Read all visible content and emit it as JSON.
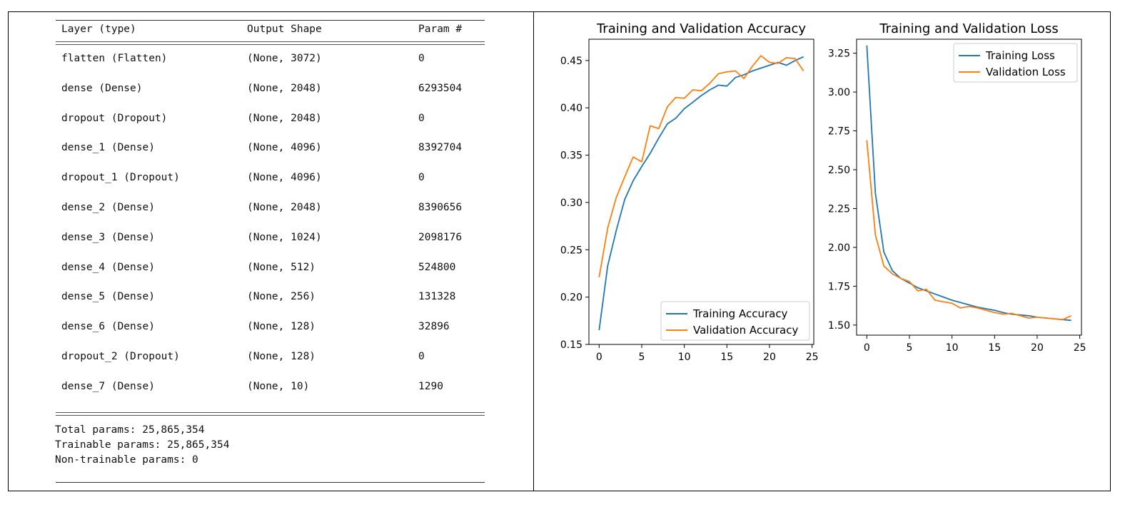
{
  "summary": {
    "headers": {
      "layer": "Layer (type)",
      "shape": "Output Shape",
      "params": "Param #"
    },
    "rows": [
      {
        "layer": "flatten (Flatten)",
        "shape": "(None, 3072)",
        "params": "0"
      },
      {
        "layer": "dense (Dense)",
        "shape": "(None, 2048)",
        "params": "6293504"
      },
      {
        "layer": "dropout (Dropout)",
        "shape": "(None, 2048)",
        "params": "0"
      },
      {
        "layer": "dense_1 (Dense)",
        "shape": "(None, 4096)",
        "params": "8392704"
      },
      {
        "layer": "dropout_1 (Dropout)",
        "shape": "(None, 4096)",
        "params": "0"
      },
      {
        "layer": "dense_2 (Dense)",
        "shape": "(None, 2048)",
        "params": "8390656"
      },
      {
        "layer": "dense_3 (Dense)",
        "shape": "(None, 1024)",
        "params": "2098176"
      },
      {
        "layer": "dense_4 (Dense)",
        "shape": "(None, 512)",
        "params": "524800"
      },
      {
        "layer": "dense_5 (Dense)",
        "shape": "(None, 256)",
        "params": "131328"
      },
      {
        "layer": "dense_6 (Dense)",
        "shape": "(None, 128)",
        "params": "32896"
      },
      {
        "layer": "dropout_2 (Dropout)",
        "shape": "(None, 128)",
        "params": "0"
      },
      {
        "layer": "dense_7 (Dense)",
        "shape": "(None, 10)",
        "params": "1290"
      }
    ],
    "total": "Total params: 25,865,354",
    "trainable": "Trainable params: 25,865,354",
    "non_trainable": "Non-trainable params: 0"
  },
  "chart_data": [
    {
      "type": "line",
      "title": "Training and Validation Accuracy",
      "xlabel": "",
      "ylabel": "",
      "xlim": [
        -1.2,
        25.2
      ],
      "ylim": [
        0.15,
        0.4725
      ],
      "xticks": [
        0,
        5,
        10,
        15,
        20,
        25
      ],
      "yticks": [
        0.15,
        0.2,
        0.25,
        0.3,
        0.35,
        0.4,
        0.45
      ],
      "ytick_labels": [
        "0.15",
        "0.20",
        "0.25",
        "0.30",
        "0.35",
        "0.40",
        "0.45"
      ],
      "legend_position": "lower-right",
      "x": [
        0,
        1,
        2,
        3,
        4,
        5,
        6,
        7,
        8,
        9,
        10,
        11,
        12,
        13,
        14,
        15,
        16,
        17,
        18,
        19,
        20,
        21,
        22,
        23,
        24
      ],
      "series": [
        {
          "name": "Training Accuracy",
          "color": "#1f77b4",
          "values": [
            0.165,
            0.233,
            0.27,
            0.303,
            0.323,
            0.338,
            0.352,
            0.368,
            0.383,
            0.389,
            0.399,
            0.406,
            0.413,
            0.419,
            0.424,
            0.423,
            0.432,
            0.435,
            0.439,
            0.442,
            0.445,
            0.448,
            0.445,
            0.45,
            0.454
          ]
        },
        {
          "name": "Validation Accuracy",
          "color": "#ff7f0e",
          "values": [
            0.221,
            0.273,
            0.305,
            0.327,
            0.348,
            0.343,
            0.381,
            0.378,
            0.401,
            0.411,
            0.41,
            0.419,
            0.418,
            0.426,
            0.436,
            0.438,
            0.439,
            0.431,
            0.444,
            0.455,
            0.448,
            0.447,
            0.453,
            0.452,
            0.439
          ]
        }
      ]
    },
    {
      "type": "line",
      "title": "Training and Validation Loss",
      "xlabel": "",
      "ylabel": "",
      "xlim": [
        -1.2,
        25.2
      ],
      "ylim": [
        1.435,
        3.34
      ],
      "xticks": [
        0,
        5,
        10,
        15,
        20,
        25
      ],
      "yticks": [
        1.5,
        1.75,
        2.0,
        2.25,
        2.5,
        2.75,
        3.0,
        3.25
      ],
      "ytick_labels": [
        "1.50",
        "1.75",
        "2.00",
        "2.25",
        "2.50",
        "2.75",
        "3.00",
        "3.25"
      ],
      "legend_position": "upper-right",
      "x": [
        0,
        1,
        2,
        3,
        4,
        5,
        6,
        7,
        8,
        9,
        10,
        11,
        12,
        13,
        14,
        15,
        16,
        17,
        18,
        19,
        20,
        21,
        22,
        23,
        24
      ],
      "series": [
        {
          "name": "Training Loss",
          "color": "#1f77b4",
          "values": [
            3.3,
            2.35,
            1.97,
            1.85,
            1.8,
            1.77,
            1.74,
            1.72,
            1.7,
            1.68,
            1.66,
            1.645,
            1.63,
            1.615,
            1.605,
            1.595,
            1.58,
            1.57,
            1.565,
            1.56,
            1.55,
            1.545,
            1.54,
            1.535,
            1.53
          ]
        },
        {
          "name": "Validation Loss",
          "color": "#ff7f0e",
          "values": [
            2.69,
            2.08,
            1.88,
            1.83,
            1.8,
            1.78,
            1.72,
            1.73,
            1.66,
            1.65,
            1.64,
            1.61,
            1.62,
            1.61,
            1.595,
            1.58,
            1.57,
            1.575,
            1.56,
            1.545,
            1.55,
            1.545,
            1.54,
            1.535,
            1.56
          ]
        }
      ]
    }
  ]
}
